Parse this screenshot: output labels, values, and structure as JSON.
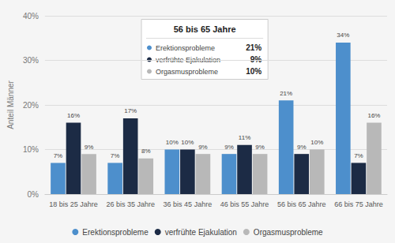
{
  "chart_data": {
    "type": "bar",
    "categories": [
      "18 bis 25 Jahre",
      "26 bis 35 Jahre",
      "36 bis 45 Jahre",
      "46 bis 55 Jahre",
      "56 bis 65 Jahre",
      "66 bis 75 Jahre"
    ],
    "series": [
      {
        "name": "Erektionsprobleme",
        "color": "#4d8fcc",
        "values": [
          7,
          7,
          10,
          9,
          21,
          34
        ],
        "value_labels": [
          "7%",
          "7%",
          "10%",
          "9%",
          "21%",
          "34%"
        ]
      },
      {
        "name": "verfrühte Ejakulation",
        "color": "#1c2b45",
        "values": [
          16,
          17,
          10,
          11,
          9,
          7
        ],
        "value_labels": [
          "16%",
          "17%",
          "10%",
          "11%",
          "9%",
          "7%"
        ]
      },
      {
        "name": "Orgasmusprobleme",
        "color": "#b8b8b8",
        "values": [
          9,
          8,
          9,
          9,
          10,
          16
        ],
        "value_labels": [
          "9%",
          "8%",
          "9%",
          "9%",
          "10%",
          "16%"
        ]
      }
    ],
    "ylabel": "Anteil Männer",
    "ylim": [
      0,
      40
    ],
    "yticks": [
      {
        "value": 0,
        "label": "0%"
      },
      {
        "value": 10,
        "label": "10%"
      },
      {
        "value": 20,
        "label": "20%"
      },
      {
        "value": 30,
        "label": "30%"
      },
      {
        "value": 40,
        "label": "40%"
      }
    ],
    "grid": true,
    "legend": "bottom",
    "data_labels": true,
    "tooltip": {
      "title": "56 bis 65 Jahre",
      "rows": [
        [
          "Erektionsprobleme",
          "21%"
        ],
        [
          "verfrühte Ejakulation",
          "9%"
        ],
        [
          "Orgasmusprobleme",
          "10%"
        ]
      ]
    }
  }
}
